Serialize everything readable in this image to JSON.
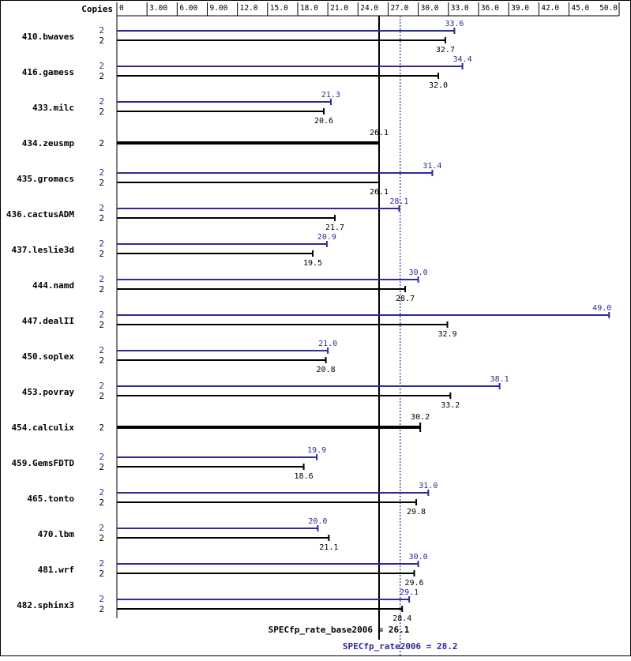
{
  "chart_data": {
    "type": "bar",
    "orientation": "horizontal",
    "copies_header": "Copies",
    "ticks": [
      "0",
      "3.00",
      "6.00",
      "9.00",
      "12.0",
      "15.0",
      "18.0",
      "21.0",
      "24.0",
      "27.0",
      "30.0",
      "33.0",
      "36.0",
      "39.0",
      "42.0",
      "45.0",
      "50.0"
    ],
    "tick_values": [
      0,
      3,
      6,
      9,
      12,
      15,
      18,
      21,
      24,
      27,
      30,
      33,
      36,
      39,
      42,
      45,
      50
    ],
    "xlim": [
      0,
      50
    ],
    "colors": {
      "peak": "#2b2b9a",
      "base": "#000000"
    },
    "categories": [
      "410.bwaves",
      "416.gamess",
      "433.milc",
      "434.zeusmp",
      "435.gromacs",
      "436.cactusADM",
      "437.leslie3d",
      "444.namd",
      "447.dealII",
      "450.soplex",
      "453.povray",
      "454.calculix",
      "459.GemsFDTD",
      "465.tonto",
      "470.lbm",
      "481.wrf",
      "482.sphinx3"
    ],
    "series": [
      {
        "name": "SPECfp_rate2006",
        "copies": [
          "2",
          "2",
          "2",
          null,
          "2",
          "2",
          "2",
          "2",
          "2",
          "2",
          "2",
          null,
          "2",
          "2",
          "2",
          "2",
          "2"
        ],
        "values": [
          33.6,
          34.4,
          21.3,
          null,
          31.4,
          28.1,
          20.9,
          30.0,
          49.0,
          21.0,
          38.1,
          null,
          19.9,
          31.0,
          20.0,
          30.0,
          29.1
        ],
        "labels": [
          "33.6",
          "34.4",
          "21.3",
          null,
          "31.4",
          "28.1",
          "20.9",
          "30.0",
          "49.0",
          "21.0",
          "38.1",
          null,
          "19.9",
          "31.0",
          "20.0",
          "30.0",
          "29.1"
        ]
      },
      {
        "name": "SPECfp_rate_base2006",
        "copies": [
          "2",
          "2",
          "2",
          "2",
          "2",
          "2",
          "2",
          "2",
          "2",
          "2",
          "2",
          "2",
          "2",
          "2",
          "2",
          "2",
          "2"
        ],
        "values": [
          32.7,
          32.0,
          20.6,
          26.1,
          26.1,
          21.7,
          19.5,
          28.7,
          32.9,
          20.8,
          33.2,
          30.2,
          18.6,
          29.8,
          21.1,
          29.6,
          28.4
        ],
        "labels": [
          "32.7",
          "32.0",
          "20.6",
          "26.1",
          "26.1",
          "21.7",
          "19.5",
          "28.7",
          "32.9",
          "20.8",
          "33.2",
          "30.2",
          "18.6",
          "29.8",
          "21.1",
          "29.6",
          "28.4"
        ]
      }
    ],
    "reference_lines": [
      {
        "name": "base",
        "text": "SPECfp_rate_base2006 = 26.1",
        "value": 26.1,
        "style": "solid"
      },
      {
        "name": "peak",
        "text": "SPECfp_rate2006 = 28.2",
        "value": 28.2,
        "style": "dotted"
      }
    ]
  }
}
